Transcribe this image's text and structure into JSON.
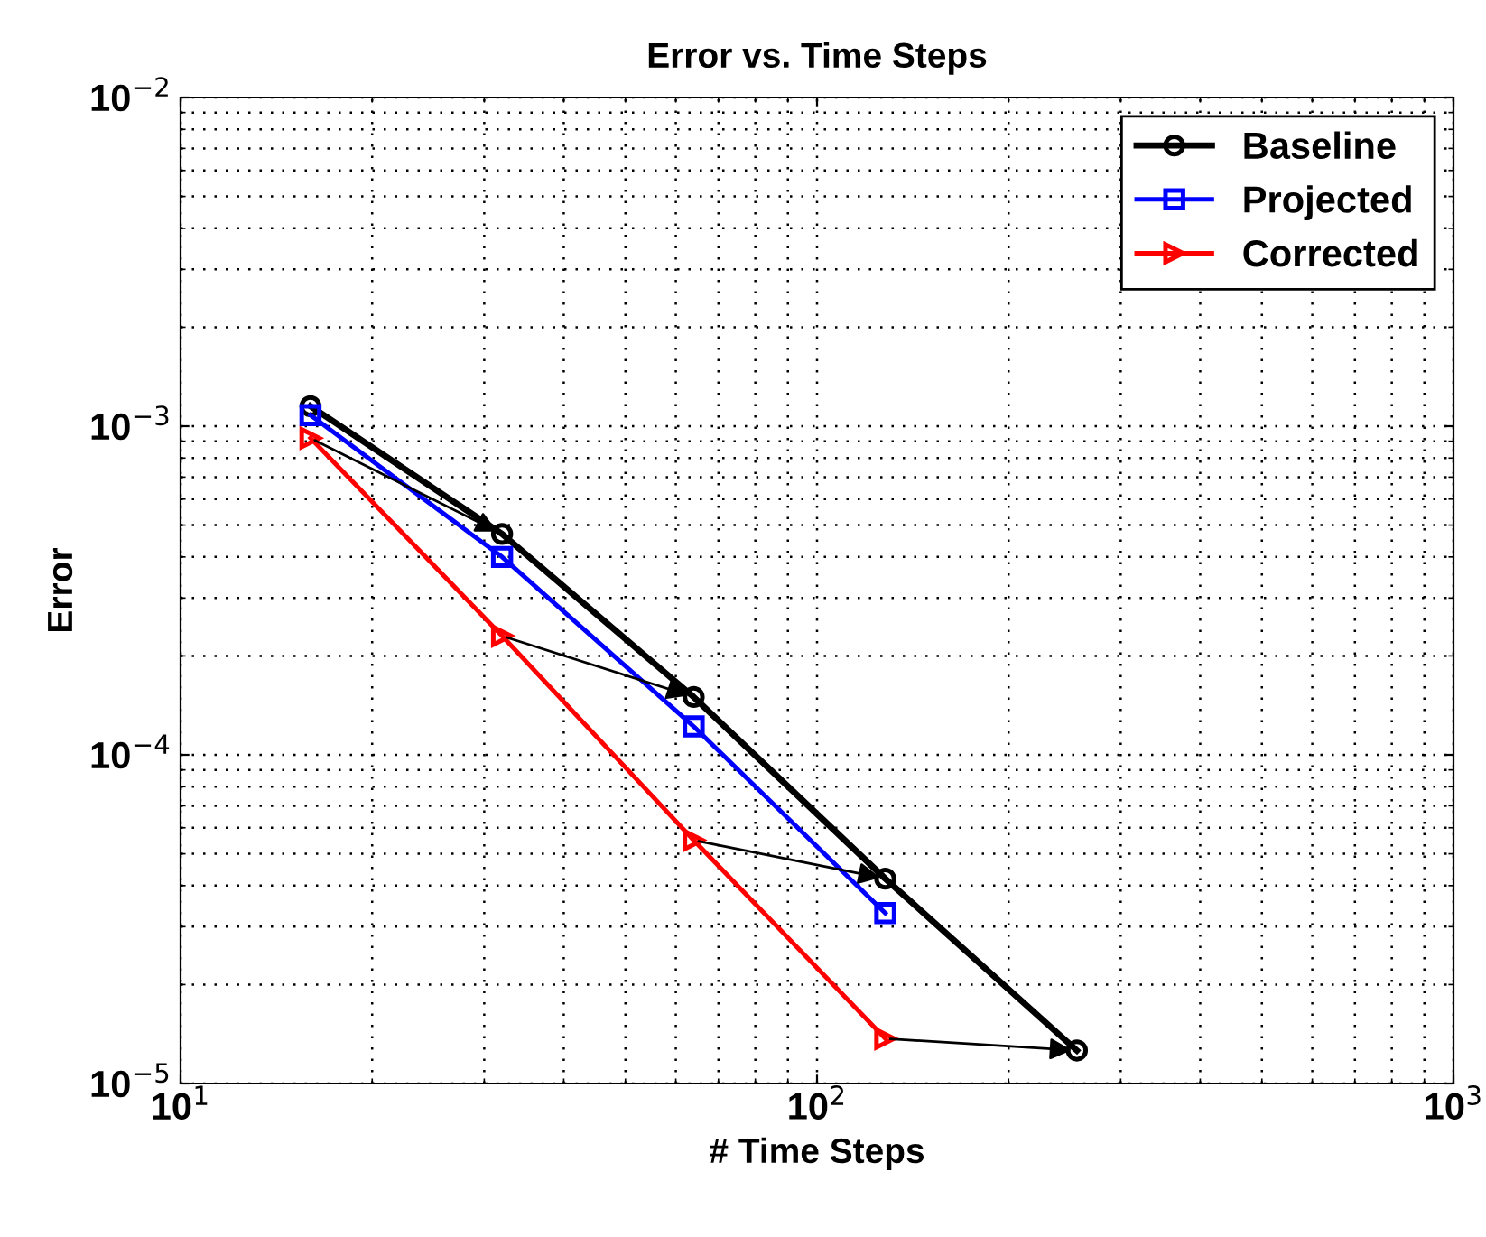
{
  "chart_data": {
    "type": "line",
    "title": "Error vs. Time Steps",
    "xlabel": "# Time Steps",
    "ylabel": "Error",
    "log": "xy",
    "xlim": [
      10,
      1000
    ],
    "ylim": [
      1e-05,
      0.01
    ],
    "xticks": [
      {
        "value": 10,
        "label": "10$^{1}$"
      },
      {
        "value": 100,
        "label": "10$^{2}$"
      },
      {
        "value": 1000,
        "label": "10$^{3}$"
      }
    ],
    "yticks": [
      {
        "value": 1e-05,
        "label": "10$^{−5}$"
      },
      {
        "value": 0.0001,
        "label": "10$^{−4}$"
      },
      {
        "value": 0.001,
        "label": "10$^{−3}$"
      },
      {
        "value": 0.01,
        "label": "10$^{−2}$"
      }
    ],
    "grid": true,
    "legend": "top right",
    "line_style": "solid",
    "series": [
      {
        "name": "Baseline",
        "color": "#000000",
        "marker": "circle",
        "x": [
          16,
          32,
          64,
          128,
          256
        ],
        "values": [
          0.00115,
          0.00047,
          0.00015,
          4.2e-05,
          1.26e-05
        ]
      },
      {
        "name": "Projected",
        "color": "#0000ff",
        "marker": "square",
        "x": [
          16,
          32,
          64,
          128
        ],
        "values": [
          0.00108,
          0.0004,
          0.000122,
          3.3e-05
        ]
      },
      {
        "name": "Corrected",
        "color": "#ff0000",
        "marker": "triangle",
        "x": [
          16,
          32,
          64,
          128
        ],
        "values": [
          0.00092,
          0.00023,
          5.5e-05,
          1.37e-05
        ]
      }
    ]
  }
}
